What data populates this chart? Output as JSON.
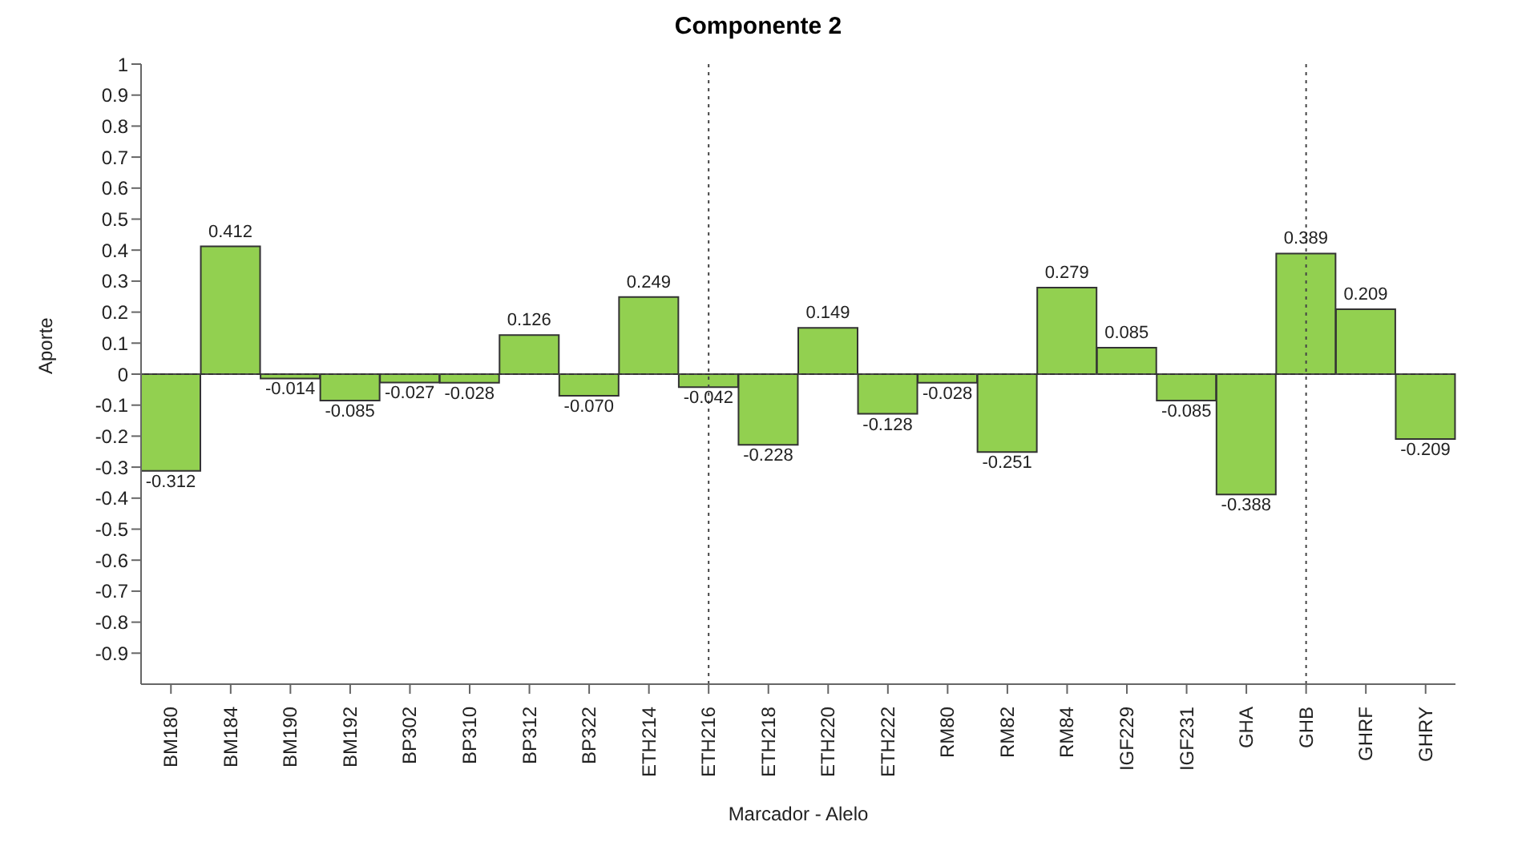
{
  "chart_data": {
    "type": "bar",
    "title": "Componente 2",
    "xlabel": "Marcador - Alelo",
    "ylabel": "Aporte",
    "categories": [
      "BM180",
      "BM184",
      "BM190",
      "BM192",
      "BP302",
      "BP310",
      "BP312",
      "BP322",
      "ETH214",
      "ETH216",
      "ETH218",
      "ETH220",
      "ETH222",
      "RM80",
      "RM82",
      "RM84",
      "IGF229",
      "IGF231",
      "GHA",
      "GHB",
      "GHRF",
      "GHRY"
    ],
    "values": [
      -0.312,
      0.412,
      -0.014,
      -0.085,
      -0.027,
      -0.028,
      0.126,
      -0.07,
      0.249,
      -0.042,
      -0.228,
      0.149,
      -0.128,
      -0.028,
      -0.251,
      0.279,
      0.085,
      -0.085,
      -0.388,
      0.389,
      0.209,
      -0.209
    ],
    "value_labels": [
      "-0.312",
      "0.412",
      "-0.014",
      "-0.085",
      "-0.027",
      "-0.028",
      "0.126",
      "-0.070",
      "0.249",
      "-0.042",
      "-0.228",
      "0.149",
      "-0.128",
      "-0.028",
      "-0.251",
      "0.279",
      "0.085",
      "-0.085",
      "-0.388",
      "0.389",
      "0.209",
      "-0.209"
    ],
    "color": "#92d050",
    "ylim": [
      -1,
      1
    ],
    "yticks": [
      -0.9,
      -0.8,
      -0.7,
      -0.6,
      -0.5,
      -0.4,
      -0.3,
      -0.2,
      -0.1,
      0,
      0.1,
      0.2,
      0.3,
      0.4,
      0.5,
      0.6,
      0.7,
      0.8,
      0.9,
      1
    ],
    "ref_lines": [
      {
        "axis": "x",
        "value": "ETH216",
        "line_style": "dotted"
      },
      {
        "axis": "x",
        "value": "GHB",
        "line_style": "dotted"
      },
      {
        "axis": "y",
        "value": 0,
        "line_style": "dotted"
      }
    ],
    "grid": false,
    "legend": false
  }
}
